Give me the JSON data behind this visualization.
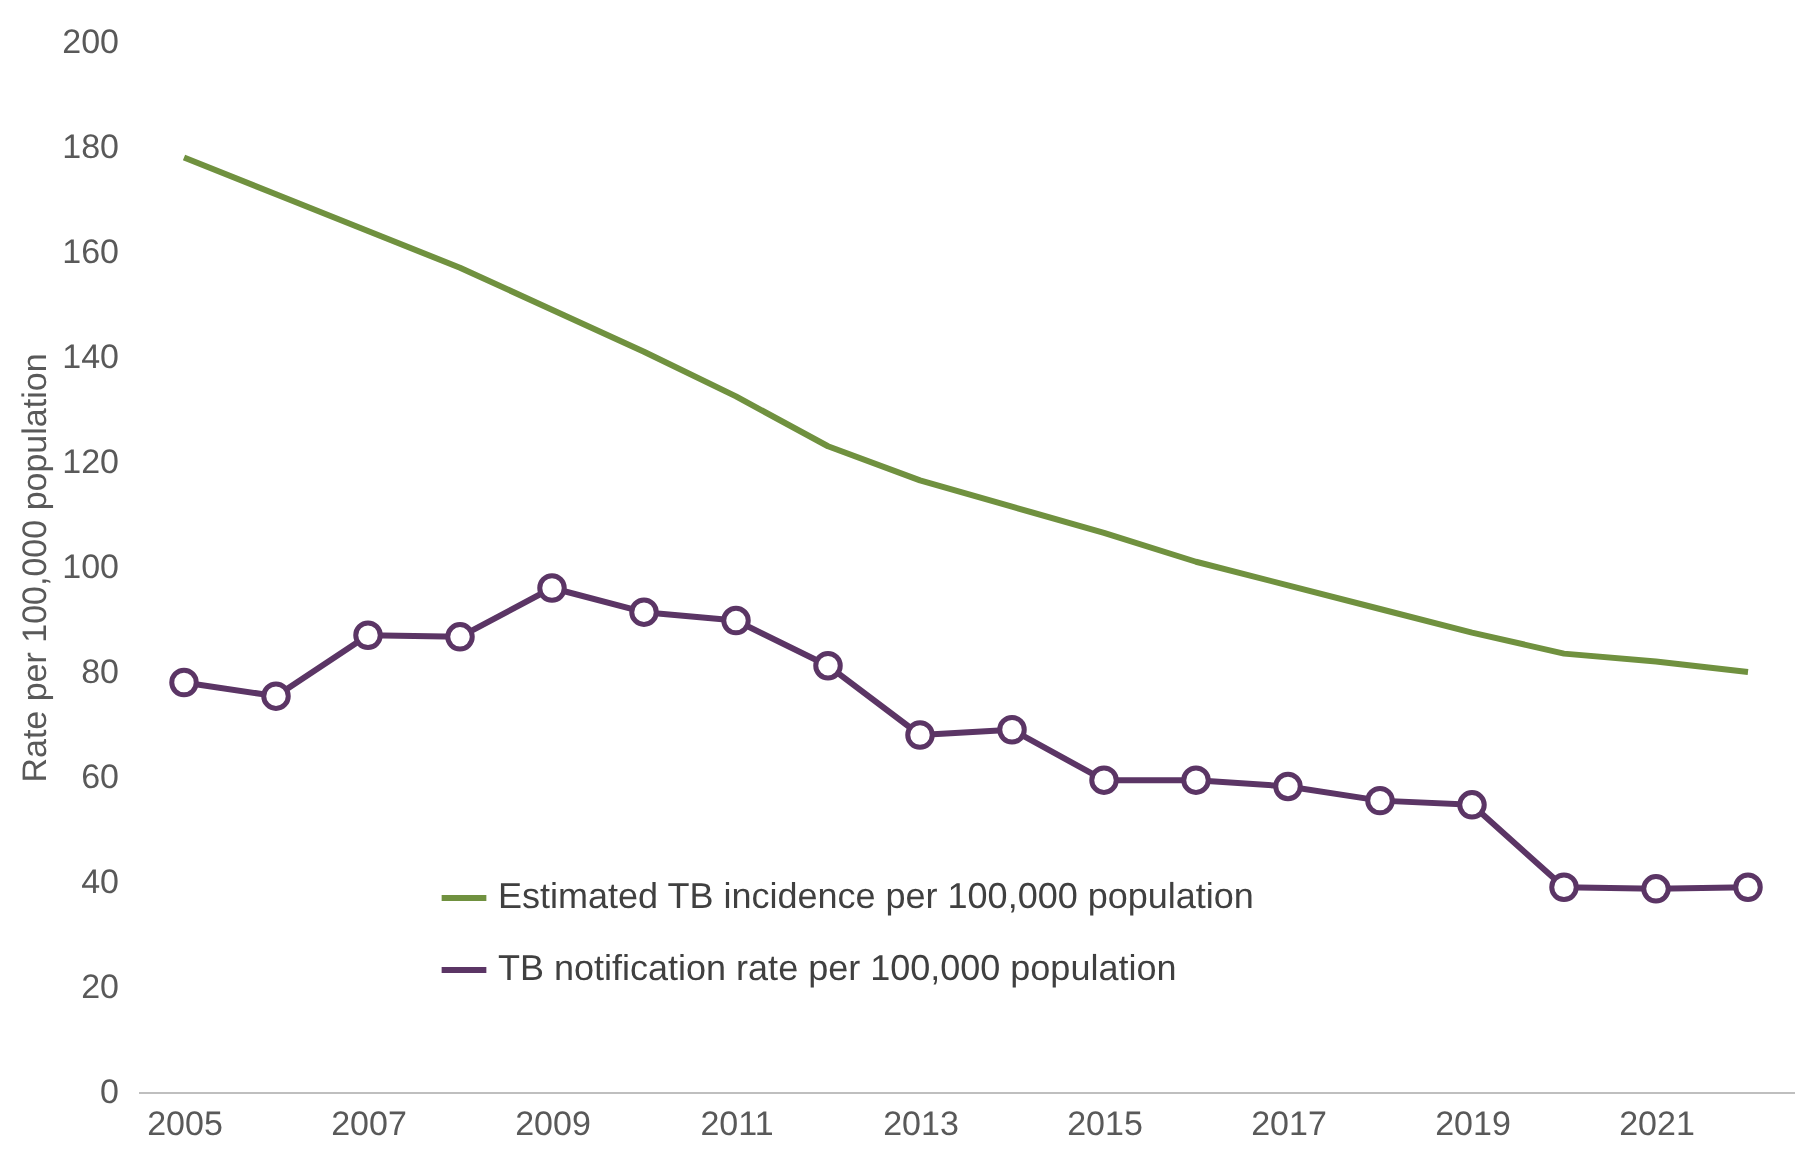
{
  "chart_data": {
    "type": "line",
    "ylabel": "Rate per 100,000 population",
    "x": [
      2005,
      2006,
      2007,
      2008,
      2009,
      2010,
      2011,
      2012,
      2013,
      2014,
      2015,
      2016,
      2017,
      2018,
      2019,
      2020,
      2021,
      2022
    ],
    "series": [
      {
        "name": "Estimated TB incidence per 100,000 population",
        "color": "#70913f",
        "marker": "none",
        "values": [
          178,
          171,
          164,
          157,
          149,
          141,
          132.5,
          123,
          116.5,
          111.5,
          106.5,
          101,
          96.5,
          92,
          87.5,
          83.5,
          82,
          80
        ]
      },
      {
        "name": "TB notification rate per 100,000 population",
        "color": "#5b3565",
        "marker": "circle",
        "values": [
          78,
          75.4,
          87,
          86.7,
          96,
          91.4,
          89.8,
          81.2,
          68,
          69,
          59.4,
          59.4,
          58.2,
          55.5,
          54.7,
          39,
          38.7,
          39
        ]
      }
    ],
    "xlim": [
      2004.5,
      2022.5
    ],
    "xticks": [
      2005,
      2007,
      2009,
      2011,
      2013,
      2015,
      2017,
      2019,
      2021
    ],
    "ylim": [
      0,
      200
    ],
    "yticks": [
      0,
      20,
      40,
      60,
      80,
      100,
      120,
      140,
      160,
      180,
      200
    ],
    "grid": false,
    "legend": "bottom",
    "line_style": "solid"
  }
}
